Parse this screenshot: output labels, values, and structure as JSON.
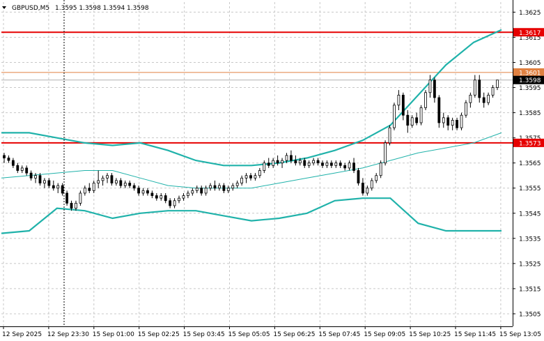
{
  "header": {
    "symbol": "GBPUSD,M5",
    "ohlc": "1.3595 1.3598 1.3594 1.3598"
  },
  "colors": {
    "background": "#ffffff",
    "grid": "#c8c8c8",
    "candle": "#000000",
    "bollinger": "#20b2aa",
    "level_red": "#e60000",
    "level_orange": "#e0a060",
    "current_price": "#b0b0b0"
  },
  "chart_data": {
    "type": "candlestick",
    "grid": true,
    "ylim": [
      1.35,
      1.3629
    ],
    "y_ticks": [
      "1.3625",
      "1.3615",
      "1.3605",
      "1.3595",
      "1.3585",
      "1.3575",
      "1.3565",
      "1.3555",
      "1.3545",
      "1.3535",
      "1.3525",
      "1.3515",
      "1.3505"
    ],
    "x_ticks": [
      "12 Sep 2025",
      "12 Sep 23:30",
      "15 Sep 01:00",
      "15 Sep 02:25",
      "15 Sep 03:45",
      "15 Sep 05:05",
      "15 Sep 06:25",
      "15 Sep 07:45",
      "15 Sep 09:05",
      "15 Sep 10:25",
      "15 Sep 11:45",
      "15 Sep 13:05"
    ],
    "levels": [
      {
        "value": 1.3617,
        "label": "1.3617",
        "color": "#e60000"
      },
      {
        "value": 1.3601,
        "label": "1.3601",
        "color": "#e08040"
      },
      {
        "value": 1.3573,
        "label": "1.3573",
        "color": "#e60000"
      }
    ],
    "current_price": {
      "value": 1.3598,
      "label": "1.3598"
    },
    "candles": [
      [
        1.3568,
        1.3569,
        1.3565,
        1.3567
      ],
      [
        1.3567,
        1.3568,
        1.3565,
        1.3566
      ],
      [
        1.3566,
        1.3567,
        1.3563,
        1.3564
      ],
      [
        1.3564,
        1.3565,
        1.3561,
        1.3562
      ],
      [
        1.3562,
        1.3564,
        1.3561,
        1.3563
      ],
      [
        1.3563,
        1.3564,
        1.356,
        1.3561
      ],
      [
        1.3561,
        1.3562,
        1.3558,
        1.3559
      ],
      [
        1.3559,
        1.3561,
        1.3557,
        1.356
      ],
      [
        1.356,
        1.3561,
        1.3556,
        1.3557
      ],
      [
        1.3557,
        1.3559,
        1.3555,
        1.3558
      ],
      [
        1.3558,
        1.3559,
        1.3555,
        1.3556
      ],
      [
        1.3556,
        1.3558,
        1.3554,
        1.3555
      ],
      [
        1.3555,
        1.3557,
        1.3553,
        1.3556
      ],
      [
        1.3556,
        1.3557,
        1.3552,
        1.3553
      ],
      [
        1.3553,
        1.3554,
        1.3548,
        1.3549
      ],
      [
        1.3549,
        1.355,
        1.3546,
        1.3547
      ],
      [
        1.3547,
        1.355,
        1.3546,
        1.3549
      ],
      [
        1.3549,
        1.3554,
        1.3548,
        1.3553
      ],
      [
        1.3553,
        1.3556,
        1.3552,
        1.3555
      ],
      [
        1.3555,
        1.3557,
        1.3553,
        1.3554
      ],
      [
        1.3554,
        1.3558,
        1.3553,
        1.3557
      ],
      [
        1.3557,
        1.3562,
        1.3555,
        1.3558
      ],
      [
        1.3558,
        1.356,
        1.3556,
        1.3559
      ],
      [
        1.3559,
        1.3561,
        1.3557,
        1.356
      ],
      [
        1.356,
        1.3561,
        1.3556,
        1.3557
      ],
      [
        1.3557,
        1.3559,
        1.3556,
        1.3558
      ],
      [
        1.3558,
        1.3559,
        1.3555,
        1.3556
      ],
      [
        1.3556,
        1.3558,
        1.3555,
        1.3557
      ],
      [
        1.3557,
        1.3558,
        1.3555,
        1.3556
      ],
      [
        1.3556,
        1.3557,
        1.3554,
        1.3555
      ],
      [
        1.3555,
        1.3556,
        1.3552,
        1.3553
      ],
      [
        1.3553,
        1.3555,
        1.3552,
        1.3554
      ],
      [
        1.3554,
        1.3555,
        1.3552,
        1.3553
      ],
      [
        1.3553,
        1.3554,
        1.3551,
        1.3552
      ],
      [
        1.3552,
        1.3553,
        1.355,
        1.3551
      ],
      [
        1.3551,
        1.3553,
        1.355,
        1.3552
      ],
      [
        1.3552,
        1.3553,
        1.3549,
        1.355
      ],
      [
        1.355,
        1.3551,
        1.3547,
        1.3548
      ],
      [
        1.3548,
        1.3551,
        1.3547,
        1.355
      ],
      [
        1.355,
        1.3552,
        1.3549,
        1.3551
      ],
      [
        1.3551,
        1.3553,
        1.355,
        1.3552
      ],
      [
        1.3552,
        1.3554,
        1.3551,
        1.3553
      ],
      [
        1.3553,
        1.3555,
        1.3552,
        1.3554
      ],
      [
        1.3554,
        1.3556,
        1.3553,
        1.3555
      ],
      [
        1.3555,
        1.3556,
        1.3552,
        1.3553
      ],
      [
        1.3553,
        1.3556,
        1.3552,
        1.3555
      ],
      [
        1.3555,
        1.3557,
        1.3554,
        1.3556
      ],
      [
        1.3556,
        1.3558,
        1.3554,
        1.3555
      ],
      [
        1.3555,
        1.3557,
        1.3554,
        1.3556
      ],
      [
        1.3556,
        1.3557,
        1.3553,
        1.3554
      ],
      [
        1.3554,
        1.3556,
        1.3553,
        1.3555
      ],
      [
        1.3555,
        1.3557,
        1.3554,
        1.3556
      ],
      [
        1.3556,
        1.3558,
        1.3555,
        1.3557
      ],
      [
        1.3557,
        1.356,
        1.3556,
        1.3559
      ],
      [
        1.3559,
        1.3561,
        1.3557,
        1.356
      ],
      [
        1.356,
        1.3561,
        1.3558,
        1.3559
      ],
      [
        1.3559,
        1.3561,
        1.3558,
        1.356
      ],
      [
        1.356,
        1.3563,
        1.3559,
        1.3562
      ],
      [
        1.3562,
        1.3566,
        1.3561,
        1.3565
      ],
      [
        1.3565,
        1.3567,
        1.3563,
        1.3564
      ],
      [
        1.3564,
        1.3567,
        1.3563,
        1.3566
      ],
      [
        1.3566,
        1.3568,
        1.3564,
        1.3565
      ],
      [
        1.3565,
        1.3567,
        1.3563,
        1.3566
      ],
      [
        1.3566,
        1.3569,
        1.3565,
        1.3568
      ],
      [
        1.3568,
        1.357,
        1.3565,
        1.3566
      ],
      [
        1.3566,
        1.3568,
        1.3564,
        1.3565
      ],
      [
        1.3565,
        1.3567,
        1.3564,
        1.3566
      ],
      [
        1.3566,
        1.3567,
        1.3563,
        1.3564
      ],
      [
        1.3564,
        1.3566,
        1.3563,
        1.3565
      ],
      [
        1.3565,
        1.3567,
        1.3564,
        1.3566
      ],
      [
        1.3566,
        1.3567,
        1.3564,
        1.3565
      ],
      [
        1.3565,
        1.3566,
        1.3563,
        1.3564
      ],
      [
        1.3564,
        1.3566,
        1.3563,
        1.3565
      ],
      [
        1.3565,
        1.3566,
        1.3563,
        1.3564
      ],
      [
        1.3564,
        1.3566,
        1.3563,
        1.3565
      ],
      [
        1.3565,
        1.3566,
        1.3563,
        1.3564
      ],
      [
        1.3564,
        1.3565,
        1.3562,
        1.3563
      ],
      [
        1.3563,
        1.3566,
        1.3562,
        1.3565
      ],
      [
        1.3565,
        1.3567,
        1.3561,
        1.3562
      ],
      [
        1.3562,
        1.3563,
        1.3556,
        1.3557
      ],
      [
        1.3557,
        1.3559,
        1.3552,
        1.3553
      ],
      [
        1.3553,
        1.3556,
        1.3552,
        1.3555
      ],
      [
        1.3555,
        1.3559,
        1.3554,
        1.3558
      ],
      [
        1.3558,
        1.3561,
        1.3557,
        1.356
      ],
      [
        1.356,
        1.3566,
        1.3559,
        1.3565
      ],
      [
        1.3565,
        1.3574,
        1.3564,
        1.3573
      ],
      [
        1.3573,
        1.358,
        1.3572,
        1.3579
      ],
      [
        1.3579,
        1.3589,
        1.3578,
        1.3588
      ],
      [
        1.3588,
        1.3594,
        1.3586,
        1.3592
      ],
      [
        1.3592,
        1.3593,
        1.3582,
        1.3584
      ],
      [
        1.3584,
        1.3586,
        1.3577,
        1.358
      ],
      [
        1.358,
        1.3584,
        1.3579,
        1.3583
      ],
      [
        1.3583,
        1.3585,
        1.358,
        1.3581
      ],
      [
        1.3581,
        1.3588,
        1.358,
        1.3587
      ],
      [
        1.3587,
        1.3594,
        1.3586,
        1.3593
      ],
      [
        1.3593,
        1.36,
        1.3591,
        1.3598
      ],
      [
        1.3598,
        1.3599,
        1.3589,
        1.3591
      ],
      [
        1.3591,
        1.3592,
        1.3579,
        1.3581
      ],
      [
        1.3581,
        1.3585,
        1.3579,
        1.3583
      ],
      [
        1.3583,
        1.3584,
        1.3578,
        1.358
      ],
      [
        1.358,
        1.3583,
        1.3578,
        1.3582
      ],
      [
        1.3582,
        1.3583,
        1.3578,
        1.3579
      ],
      [
        1.3579,
        1.3585,
        1.3578,
        1.3584
      ],
      [
        1.3584,
        1.359,
        1.3583,
        1.3589
      ],
      [
        1.3589,
        1.3593,
        1.3587,
        1.3592
      ],
      [
        1.3592,
        1.36,
        1.3591,
        1.3598
      ],
      [
        1.3598,
        1.36,
        1.3589,
        1.3591
      ],
      [
        1.3591,
        1.3593,
        1.3587,
        1.3589
      ],
      [
        1.3589,
        1.3593,
        1.3588,
        1.3592
      ],
      [
        1.3592,
        1.3596,
        1.3591,
        1.3595
      ],
      [
        1.3595,
        1.3598,
        1.3594,
        1.3598
      ]
    ],
    "bb_upper": [
      1.3577,
      1.3577,
      1.3575,
      1.3573,
      1.3572,
      1.3573,
      1.357,
      1.3566,
      1.3564,
      1.3564,
      1.3565,
      1.3567,
      1.357,
      1.3574,
      1.358,
      1.3592,
      1.3604,
      1.3613,
      1.3618
    ],
    "bb_middle": [
      1.3559,
      1.356,
      1.3561,
      1.3562,
      1.3562,
      1.3559,
      1.3556,
      1.3555,
      1.3555,
      1.3555,
      1.3557,
      1.3559,
      1.3561,
      1.3563,
      1.3566,
      1.3569,
      1.3571,
      1.3573,
      1.3577
    ],
    "bb_lower": [
      1.3537,
      1.3538,
      1.3547,
      1.3546,
      1.3543,
      1.3545,
      1.3546,
      1.3546,
      1.3544,
      1.3542,
      1.3543,
      1.3545,
      1.355,
      1.3551,
      1.3551,
      1.3541,
      1.3538,
      1.3538,
      1.3538
    ]
  }
}
